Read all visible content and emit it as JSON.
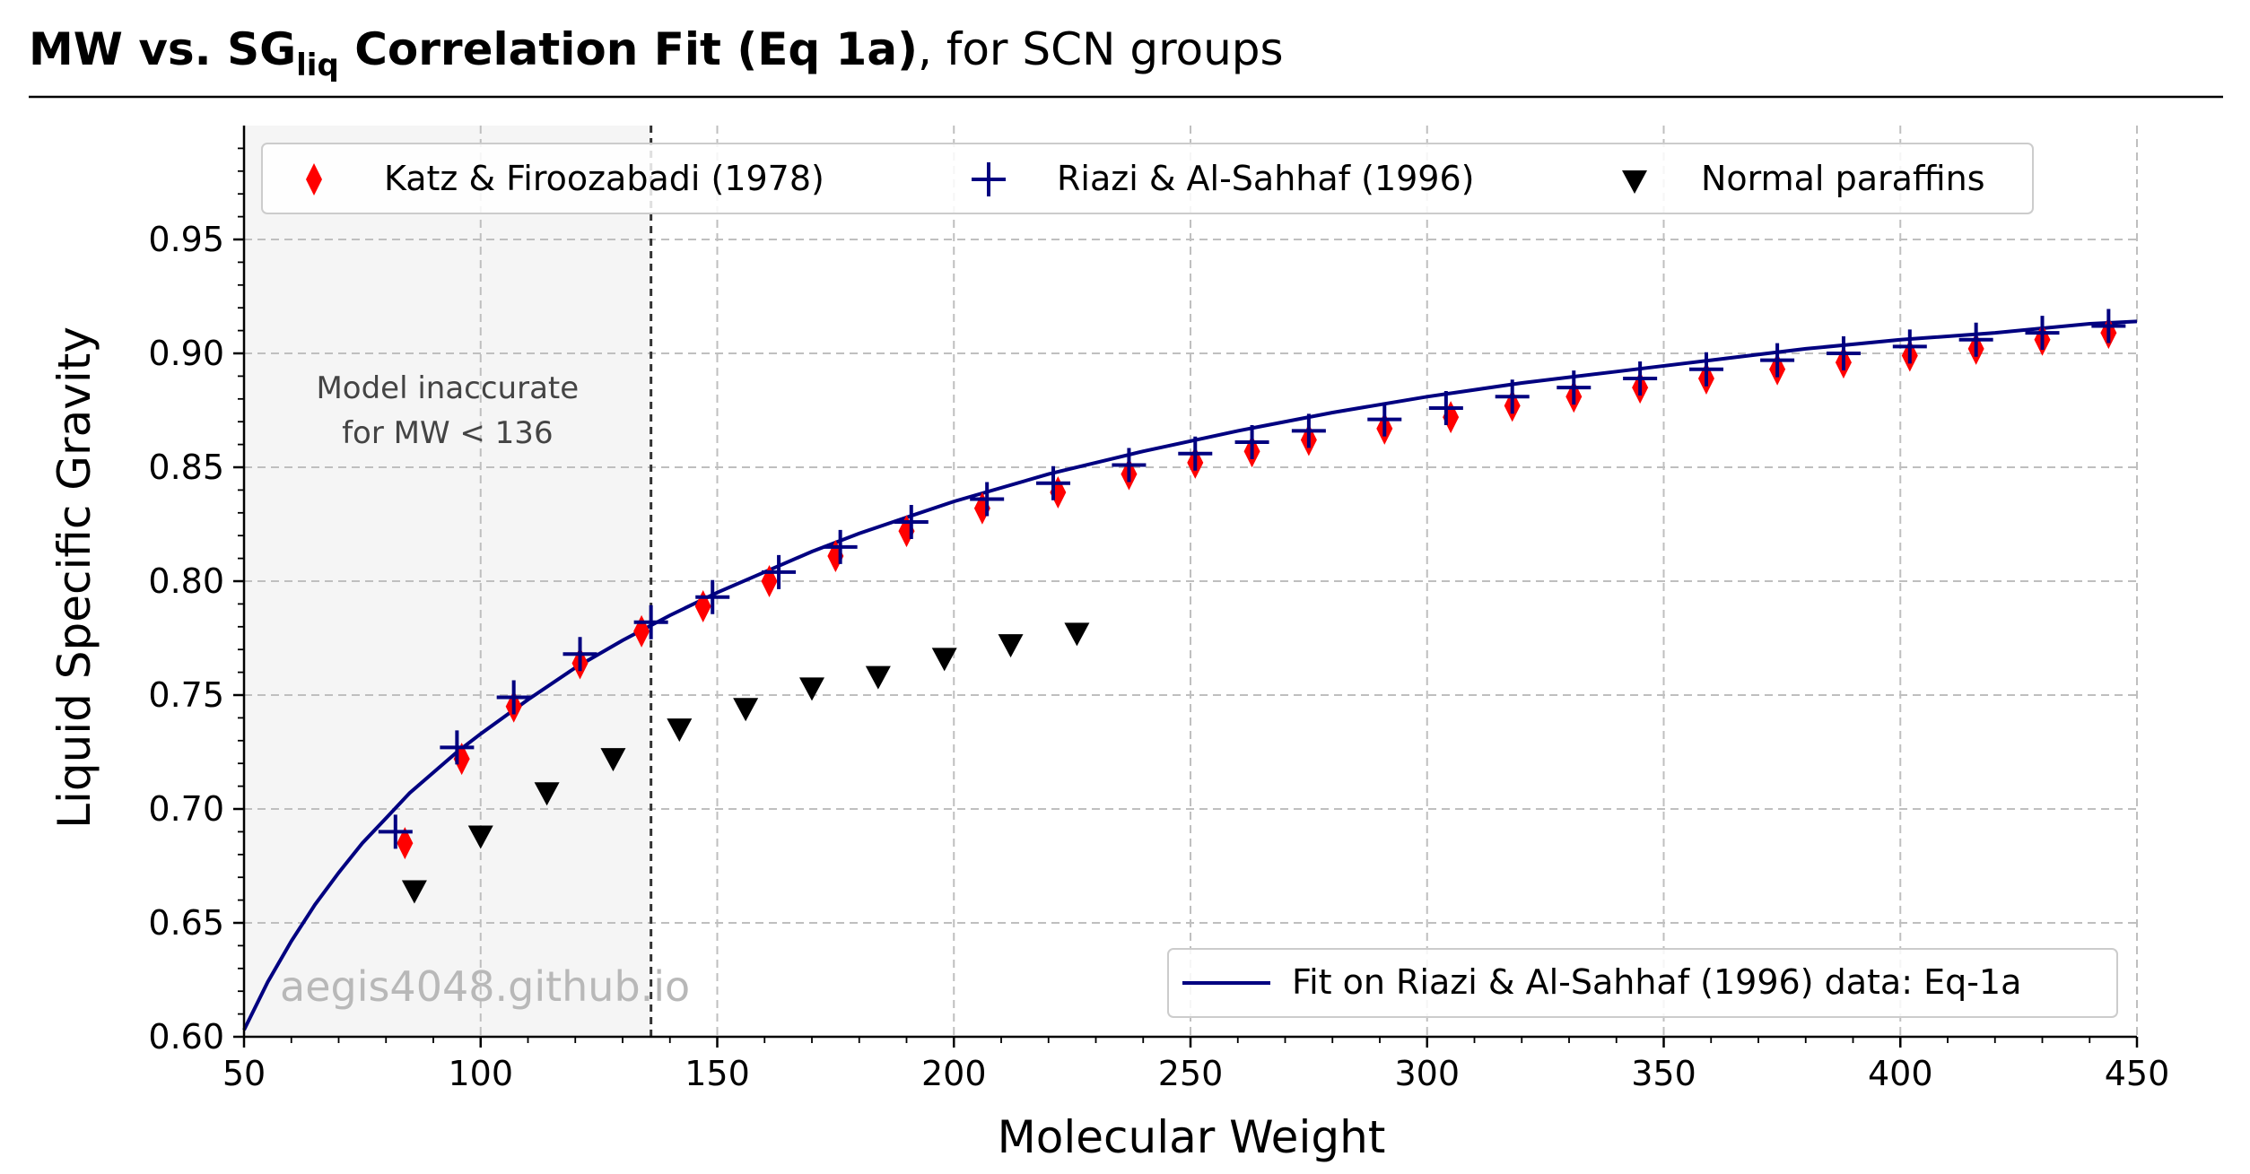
{
  "header": {
    "title_part1": "MW vs. ",
    "title_sg": "SG",
    "title_sub": "liq",
    "title_part2": " Correlation Fit (Eq 1a)",
    "title_suffix": ", for SCN groups"
  },
  "annotation": {
    "line1": "Model inaccurate",
    "line2": "for MW < 136"
  },
  "watermark": "aegis4048.github.io",
  "colors": {
    "katz": "#ff0000",
    "riazi": "#000080",
    "paraffin": "#000000",
    "fit": "#000080",
    "shade": "#f5f5f5",
    "grid": "#bfbfbf"
  },
  "chart_data": {
    "type": "scatter",
    "xlabel": "Molecular Weight",
    "ylabel": "Liquid Specific Gravity",
    "xlim": [
      50,
      450
    ],
    "ylim": [
      0.6,
      1.0
    ],
    "xticks": [
      50,
      100,
      150,
      200,
      250,
      300,
      350,
      400,
      450
    ],
    "yticks": [
      0.6,
      0.65,
      0.7,
      0.75,
      0.8,
      0.85,
      0.9,
      0.95
    ],
    "xtick_labels": [
      "50",
      "100",
      "150",
      "200",
      "250",
      "300",
      "350",
      "400",
      "450"
    ],
    "ytick_labels": [
      "0.60",
      "0.65",
      "0.70",
      "0.75",
      "0.80",
      "0.85",
      "0.90",
      "0.95"
    ],
    "grid": true,
    "inaccurate_region": [
      50,
      136
    ],
    "cutoff_mw": 136,
    "legend_top_placement": "top-center",
    "legend_bottom_placement": "lower-right",
    "series": [
      {
        "name": "Katz & Firoozabadi (1978)",
        "marker": "thin-diamond",
        "x": [
          84,
          96,
          107,
          121,
          134,
          147,
          161,
          175,
          190,
          206,
          222,
          237,
          251,
          263,
          275,
          291,
          305,
          318,
          331,
          345,
          359,
          374,
          388,
          402,
          416,
          430,
          444
        ],
        "y": [
          0.685,
          0.722,
          0.745,
          0.764,
          0.778,
          0.789,
          0.8,
          0.811,
          0.822,
          0.832,
          0.839,
          0.847,
          0.852,
          0.857,
          0.862,
          0.867,
          0.872,
          0.877,
          0.881,
          0.885,
          0.889,
          0.893,
          0.896,
          0.899,
          0.902,
          0.906,
          0.909
        ]
      },
      {
        "name": "Riazi & Al-Sahhaf (1996)",
        "marker": "plus",
        "x": [
          82,
          95,
          107,
          121,
          136,
          149,
          163,
          176,
          191,
          207,
          221,
          237,
          251,
          263,
          275,
          291,
          304,
          318,
          331,
          345,
          359,
          374,
          388,
          402,
          416,
          430,
          444
        ],
        "y": [
          0.69,
          0.727,
          0.749,
          0.768,
          0.782,
          0.793,
          0.804,
          0.815,
          0.826,
          0.836,
          0.843,
          0.851,
          0.856,
          0.861,
          0.866,
          0.871,
          0.876,
          0.881,
          0.885,
          0.889,
          0.893,
          0.897,
          0.9,
          0.903,
          0.906,
          0.909,
          0.912
        ]
      },
      {
        "name": "Normal paraffins",
        "marker": "triangle-down",
        "x": [
          86,
          100,
          114,
          128,
          142,
          156,
          170,
          184,
          198,
          212,
          226
        ],
        "y": [
          0.664,
          0.688,
          0.707,
          0.722,
          0.735,
          0.744,
          0.753,
          0.758,
          0.766,
          0.772,
          0.777
        ]
      },
      {
        "name": "Fit on Riazi & Al-Sahhaf (1996) data: Eq-1a",
        "marker": "line",
        "x": [
          50,
          55,
          60,
          65,
          70,
          75,
          80,
          85,
          90,
          95,
          100,
          110,
          120,
          130,
          140,
          150,
          160,
          170,
          180,
          190,
          200,
          220,
          240,
          260,
          280,
          300,
          320,
          340,
          360,
          380,
          400,
          420,
          440,
          450
        ],
        "y": [
          0.603,
          0.624,
          0.642,
          0.658,
          0.672,
          0.685,
          0.696,
          0.707,
          0.716,
          0.725,
          0.733,
          0.748,
          0.762,
          0.774,
          0.785,
          0.795,
          0.804,
          0.813,
          0.821,
          0.828,
          0.835,
          0.847,
          0.857,
          0.866,
          0.874,
          0.881,
          0.887,
          0.892,
          0.897,
          0.902,
          0.906,
          0.909,
          0.913,
          0.914
        ]
      }
    ]
  }
}
